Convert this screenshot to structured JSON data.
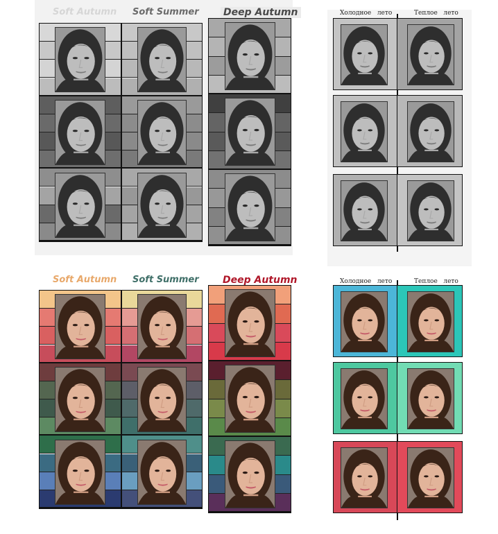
{
  "top_left": {
    "labels": [
      "Soft Autumn",
      "Soft Summer",
      "Deep Autumn"
    ],
    "label_colors": [
      "#d6d6d6",
      "#6b6b6b",
      "#4a4a4a"
    ],
    "columns": [
      {
        "stripes": [
          "#d8d8d8",
          "#c8c8c8",
          "#d4d4d4",
          "#bcbcbc",
          "#5e5e5e",
          "#6a6a6a",
          "#585858",
          "#6e6e6e",
          "#8e8e8e",
          "#a4a4a4",
          "#6a6a6a",
          "#8a8a8a"
        ]
      },
      {
        "stripes": [
          "#c8c8c8",
          "#c0c0c0",
          "#b8b8b8",
          "#b0b0b0",
          "#9a9a9a",
          "#8c8c8c",
          "#8a8a8a",
          "#7a7a7a",
          "#a8a8a8",
          "#989898",
          "#a4a4a4",
          "#b0b0b0"
        ]
      },
      {
        "stripes": [
          "#a8a8a8",
          "#b4b4b4",
          "#9c9c9c",
          "#bcbcbc",
          "#404040",
          "#646464",
          "#5a5a5a",
          "#727272",
          "#8c8c8c",
          "#989898",
          "#828282",
          "#909090"
        ]
      }
    ],
    "face_tone": "gray"
  },
  "top_right": {
    "headers": [
      "Холодное",
      "лето",
      "Теплое",
      "лето"
    ],
    "rows": [
      {
        "left": "#c4c4c4",
        "right": "#a4a4a4"
      },
      {
        "left": "#c0c0c0",
        "right": "#b8b8b8"
      },
      {
        "left": "#b0b0b0",
        "right": "#c4c4c4"
      }
    ]
  },
  "bottom_left": {
    "labels": [
      "Soft Autumn",
      "Soft Summer",
      "Deep Autumn"
    ],
    "label_colors": [
      "#e8a86a",
      "#3f6f68",
      "#b0182a"
    ],
    "columns": [
      {
        "stripes": [
          "#f3c58a",
          "#e57a72",
          "#d96060",
          "#c74d5b",
          "#6e3d3e",
          "#546650",
          "#3f5a4c",
          "#5d8a62",
          "#2e6e4a",
          "#3b6b82",
          "#5a7fb8",
          "#2b3b70"
        ]
      },
      {
        "stripes": [
          "#e9d89a",
          "#e59b94",
          "#d56f73",
          "#b24763",
          "#7a4a52",
          "#5d5e68",
          "#4f6a6a",
          "#3f6f6a",
          "#4f8f8a",
          "#3a6078",
          "#6a9ec0",
          "#44507a"
        ]
      },
      {
        "stripes": [
          "#f1a07a",
          "#e06a52",
          "#d94a5a",
          "#d83a4a",
          "#5a1f2e",
          "#6a6a3a",
          "#7a8a4a",
          "#5a8a4a",
          "#3a6a50",
          "#2a8a8a",
          "#3a5a7a",
          "#5a2f5a"
        ]
      }
    ],
    "face_tone": "color"
  },
  "bottom_right": {
    "headers": [
      "Холодное",
      "лето",
      "Теплое",
      "лето"
    ],
    "rows": [
      {
        "left": "#4cb6d8",
        "right": "#2cc6b8"
      },
      {
        "left": "#4ec8a0",
        "right": "#72dcb4"
      },
      {
        "left": "#d84858",
        "right": "#e24a5a"
      }
    ]
  }
}
